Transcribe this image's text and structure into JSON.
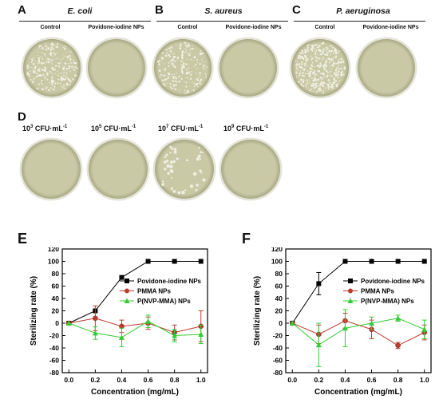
{
  "panels": {
    "A": {
      "letter": "A",
      "organism": "E. coli",
      "labels": [
        "Control",
        "Povidone-iodine NPs"
      ]
    },
    "B": {
      "letter": "B",
      "organism": "S. aureus",
      "labels": [
        "Control",
        "Povidone-iodine NPs"
      ]
    },
    "C": {
      "letter": "C",
      "organism": "P. aeruginosa",
      "labels": [
        "Control",
        "Povidone-iodine NPs"
      ]
    },
    "D": {
      "letter": "D",
      "concentrations": [
        {
          "base": "10",
          "exp": "3",
          "unit": " CFU·mL",
          "unit_exp": "-1"
        },
        {
          "base": "10",
          "exp": "5",
          "unit": " CFU·mL",
          "unit_exp": "-1"
        },
        {
          "base": "10",
          "exp": "7",
          "unit": " CFU·mL",
          "unit_exp": "-1"
        },
        {
          "base": "10",
          "exp": "9",
          "unit": " CFU·mL",
          "unit_exp": "-1"
        }
      ]
    },
    "E": {
      "letter": "E"
    },
    "F": {
      "letter": "F"
    }
  },
  "colors": {
    "agar": "#c9c9a6",
    "agar_dark": "#a8a884",
    "rim": "#e4e4d8",
    "colony": "#f4f4ea",
    "series_black": "#000000",
    "series_red": "#c0392b",
    "series_green": "#33cc33"
  },
  "chart_data": [
    {
      "type": "line",
      "panel": "E",
      "x": [
        0.0,
        0.2,
        0.4,
        0.6,
        0.8,
        1.0
      ],
      "xlabel": "Concentration (mg/mL)",
      "ylabel": "Sterilizing rate (%)",
      "xlim": [
        -0.05,
        1.05
      ],
      "ylim": [
        -80,
        120
      ],
      "xticks": [
        "0.0",
        "0.2",
        "0.4",
        "0.6",
        "0.8",
        "1.0"
      ],
      "yticks": [
        "-80",
        "-60",
        "-40",
        "-20",
        "0",
        "20",
        "40",
        "60",
        "80",
        "100",
        "120"
      ],
      "legend_position": "right-center",
      "series": [
        {
          "name": "Povidone-iodine NPs",
          "color": "#000000",
          "marker": "square",
          "values": [
            0,
            20,
            74,
            100,
            100,
            100
          ],
          "err": [
            0,
            0,
            0,
            0,
            0,
            0
          ]
        },
        {
          "name": "PMMA NPs",
          "color": "#c0392b",
          "marker": "circle",
          "values": [
            0,
            8,
            -5,
            0,
            -15,
            -5
          ],
          "err": [
            0,
            20,
            10,
            10,
            12,
            25
          ]
        },
        {
          "name": "P(NVP-MMA) NPs",
          "color": "#33cc33",
          "marker": "triangle",
          "values": [
            0,
            -16,
            -23,
            3,
            -20,
            -18
          ],
          "err": [
            0,
            10,
            15,
            10,
            10,
            15
          ]
        }
      ]
    },
    {
      "type": "line",
      "panel": "F",
      "x": [
        0.0,
        0.2,
        0.4,
        0.6,
        0.8,
        1.0
      ],
      "xlabel": "Concentration (mg/mL)",
      "ylabel": "Sterilizing rate (%)",
      "xlim": [
        -0.05,
        1.05
      ],
      "ylim": [
        -80,
        120
      ],
      "xticks": [
        "0.0",
        "0.2",
        "0.4",
        "0.6",
        "0.8",
        "1.0"
      ],
      "yticks": [
        "-80",
        "-60",
        "-40",
        "-20",
        "0",
        "20",
        "40",
        "60",
        "80",
        "100",
        "120"
      ],
      "legend_position": "right-center",
      "series": [
        {
          "name": "Povidone-iodine NPs",
          "color": "#000000",
          "marker": "square",
          "values": [
            0,
            64,
            100,
            100,
            100,
            100
          ],
          "err": [
            0,
            18,
            0,
            0,
            0,
            0
          ]
        },
        {
          "name": "PMMA NPs",
          "color": "#c0392b",
          "marker": "circle",
          "values": [
            0,
            -18,
            4,
            -10,
            -36,
            -15
          ],
          "err": [
            0,
            15,
            12,
            15,
            5,
            12
          ]
        },
        {
          "name": "P(NVP-MMA) NPs",
          "color": "#33cc33",
          "marker": "triangle",
          "values": [
            0,
            -35,
            -8,
            0,
            8,
            -10
          ],
          "err": [
            0,
            35,
            30,
            10,
            5,
            15
          ]
        }
      ]
    }
  ]
}
